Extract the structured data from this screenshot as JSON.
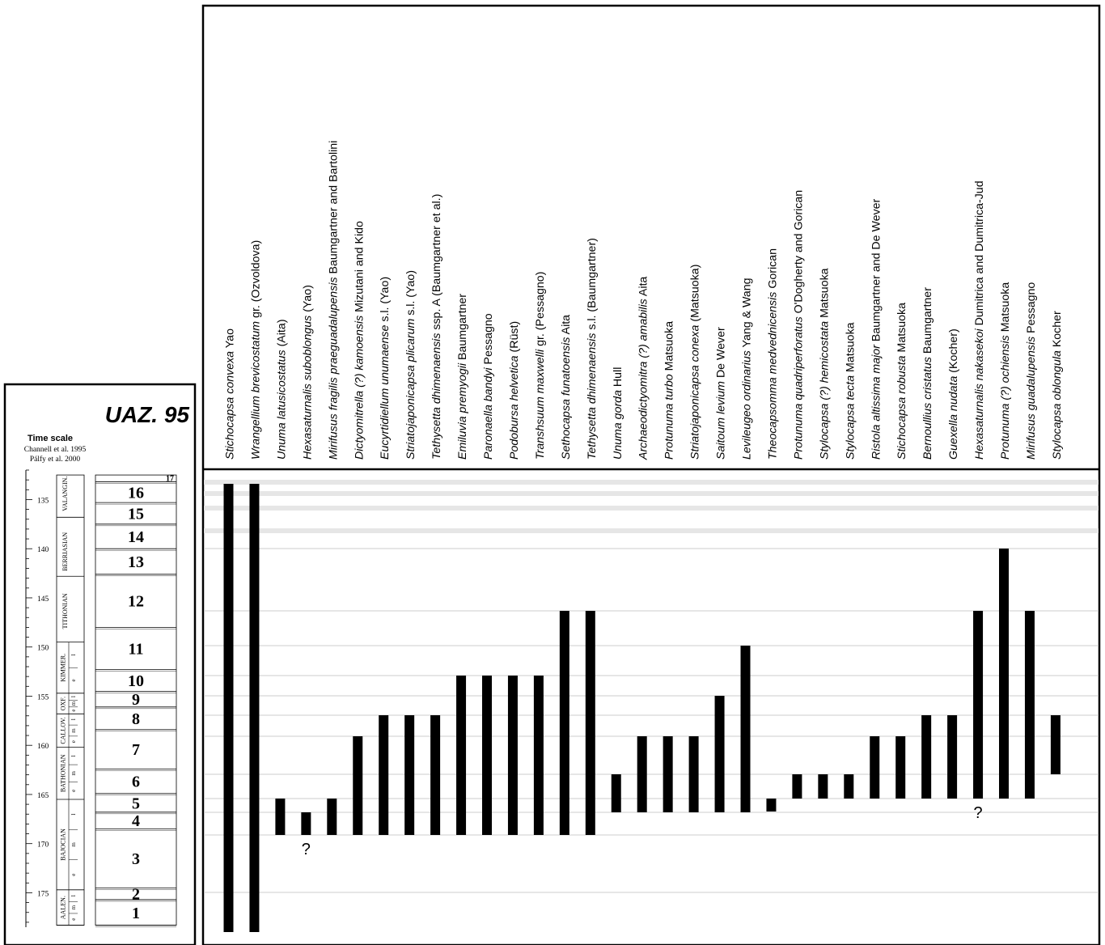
{
  "title": "UAZ. 95",
  "time_scale": {
    "heading": "Time scale",
    "sources": [
      "Channell et al. 1995",
      "Pálfy et al. 2000"
    ]
  },
  "colors": {
    "bar": "#000000",
    "gridline": "#cccccc",
    "gridline_band": "#e6e6e6",
    "frame": "#000000"
  },
  "chart_data": {
    "type": "bar",
    "orientation": "vertical-range",
    "title": "UAZ. 95",
    "y_axis": {
      "label": "",
      "ticks": [
        135,
        140,
        145,
        150,
        155,
        160,
        165,
        170,
        175
      ],
      "range": [
        132,
        178.5
      ],
      "reversed": true
    },
    "stages": [
      {
        "name": "VALANGIN.",
        "top": 132,
        "bottom": 136.8
      },
      {
        "name": "BERRIASIAN",
        "top": 137.8,
        "bottom": 142.8
      },
      {
        "name": "TITHONIAN",
        "top": 143.2,
        "bottom": 149.5
      },
      {
        "name": "KIMMER.",
        "top": 149.5,
        "bottom": 154.7,
        "sub": [
          "l",
          "e"
        ]
      },
      {
        "name": "OXF.",
        "top": 154.7,
        "bottom": 156.8,
        "sub": [
          "l",
          "m",
          "e"
        ]
      },
      {
        "name": "CALLOV.",
        "top": 156.8,
        "bottom": 160.2,
        "sub": [
          "l",
          "m",
          "e"
        ]
      },
      {
        "name": "BATHONIAN",
        "top": 160.2,
        "bottom": 165.5,
        "sub": [
          "l",
          "m",
          "e"
        ]
      },
      {
        "name": "BAJOCIAN",
        "top": 165.5,
        "bottom": 174.7,
        "sub": [
          "l",
          "m",
          "e"
        ]
      },
      {
        "name": "AALEN.",
        "top": 174.7,
        "bottom": 178.3,
        "sub": [
          "l",
          "m",
          "e"
        ]
      }
    ],
    "zones": [
      {
        "label": "17",
        "top": 132.5,
        "bottom": 133.2
      },
      {
        "label": "16",
        "top": 133.2,
        "bottom": 135.3
      },
      {
        "label": "15",
        "top": 135.3,
        "bottom": 137.5
      },
      {
        "label": "14",
        "top": 137.5,
        "bottom": 140.0
      },
      {
        "label": "13",
        "top": 140.0,
        "bottom": 142.6
      },
      {
        "label": "12",
        "top": 142.6,
        "bottom": 148.0
      },
      {
        "label": "11",
        "top": 148.0,
        "bottom": 152.3
      },
      {
        "label": "10",
        "top": 152.3,
        "bottom": 154.5
      },
      {
        "label": "9",
        "top": 154.5,
        "bottom": 156.1
      },
      {
        "label": "8",
        "top": 156.1,
        "bottom": 158.4
      },
      {
        "label": "7",
        "top": 158.4,
        "bottom": 162.4
      },
      {
        "label": "6",
        "top": 162.4,
        "bottom": 164.9
      },
      {
        "label": "5",
        "top": 164.9,
        "bottom": 166.8
      },
      {
        "label": "4",
        "top": 166.8,
        "bottom": 168.5
      },
      {
        "label": "3",
        "top": 168.5,
        "bottom": 174.5
      },
      {
        "label": "2",
        "top": 174.5,
        "bottom": 175.7
      },
      {
        "label": "1",
        "top": 175.7,
        "bottom": 178.3
      }
    ],
    "series": [
      {
        "italic": "Stichocapsa convexa",
        "author": " Yao",
        "top": 1,
        "bottom": 17,
        "q": false
      },
      {
        "italic": "Wrangellium brevicostatum",
        "author": " gr. (Ozvoldova)",
        "top": 1,
        "bottom": 17,
        "q": false
      },
      {
        "italic": "Unuma latusicostatus",
        "author": " (Aita)",
        "top": 3,
        "bottom": 5,
        "q": false
      },
      {
        "italic": "Hexasaturnalis suboblongus",
        "author": " (Yao)",
        "top": 3,
        "bottom": 4,
        "q": true
      },
      {
        "italic": "Mirifusus fragilis praeguadalupensis",
        "author": " Baumgartner and Bartolini",
        "top": 3,
        "bottom": 5,
        "q": false
      },
      {
        "italic": "Dictyomitrella (?) kamoensis",
        "author": " Mizutani and Kido",
        "top": 3,
        "bottom": 7,
        "q": false
      },
      {
        "italic": "Eucyrtidiellum unumaense",
        "author": " s.l. (Yao)",
        "top": 3,
        "bottom": 8,
        "q": false
      },
      {
        "italic": "Striatojaponicapsa plicarum",
        "author": " s.l. (Yao)",
        "top": 3,
        "bottom": 8,
        "q": false
      },
      {
        "italic": "Tethysetta dhimenaensis",
        "author": " ssp. A  (Baumgartner et al.)",
        "top": 3,
        "bottom": 8,
        "q": false
      },
      {
        "italic": "Emiluvia premyogii",
        "author": " Baumgartner",
        "top": 3,
        "bottom": 10,
        "q": false
      },
      {
        "italic": "Paronaella bandyi",
        "author": " Pessagno",
        "top": 3,
        "bottom": 10,
        "q": false
      },
      {
        "italic": "Podobursa helvetica",
        "author": " (Rüst)",
        "top": 3,
        "bottom": 10,
        "q": false
      },
      {
        "italic": "Transhsuum maxwelli",
        "author": " gr. (Pessagno)",
        "top": 3,
        "bottom": 10,
        "q": false
      },
      {
        "italic": "Sethocapsa funatoensis",
        "author": " Aita",
        "top": 3,
        "bottom": 12,
        "q": false
      },
      {
        "italic": "Tethysetta dhimenaensis",
        "author": " s.l. (Baumgartner)",
        "top": 3,
        "bottom": 12,
        "q": false
      },
      {
        "italic": "Unuma gorda",
        "author": " Hull",
        "top": 4,
        "bottom": 6,
        "q": false
      },
      {
        "italic": "Archaeodictyomitra (?) amabilis",
        "author": " Aita",
        "top": 4,
        "bottom": 7,
        "q": false
      },
      {
        "italic": "Protunuma turbo",
        "author": " Matsuoka",
        "top": 4,
        "bottom": 7,
        "q": false
      },
      {
        "italic": "Striatojaponicapsa conexa",
        "author": " (Matsuoka)",
        "top": 4,
        "bottom": 7,
        "q": false
      },
      {
        "italic": "Saitoum levium",
        "author": " De Wever",
        "top": 4,
        "bottom": 9,
        "q": false
      },
      {
        "italic": "Levileugeo ordinarius",
        "author": " Yang & Wang",
        "top": 4,
        "bottom": 11,
        "q": false
      },
      {
        "italic": "Theocapsomma medvednicensis",
        "author": " Gorican",
        "top": 5,
        "bottom": 5,
        "q": false
      },
      {
        "italic": "Protunuma quadriperforatus",
        "author": " O'Dogherty and Gorican",
        "top": 5,
        "bottom": 6,
        "q": false
      },
      {
        "italic": "Stylocapsa (?) hemicostata",
        "author": " Matsuoka",
        "top": 5,
        "bottom": 6,
        "q": false
      },
      {
        "italic": "Stylocapsa tecta",
        "author": " Matsuoka",
        "top": 5,
        "bottom": 6,
        "q": false
      },
      {
        "italic": "Ristola altissima major",
        "author": " Baumgartner and De Wever",
        "top": 5,
        "bottom": 7,
        "q": false
      },
      {
        "italic": "Stichocapsa robusta",
        "author": " Matsuoka",
        "top": 5,
        "bottom": 7,
        "q": false
      },
      {
        "italic": "Bernoullius cristatus",
        "author": " Baumgartner",
        "top": 5,
        "bottom": 8,
        "q": false
      },
      {
        "italic": "Guexella nudata",
        "author": " (Kocher)",
        "top": 5,
        "bottom": 8,
        "q": false
      },
      {
        "italic": "Hexasaturnalis nakasekoi",
        "author": " Dumitrica and Dumitrica-Jud",
        "top": 5,
        "bottom": 12,
        "q": true
      },
      {
        "italic": "Protunuma (?) ochiensis",
        "author": " Matsuoka",
        "top": 5,
        "bottom": 13,
        "q": false
      },
      {
        "italic": "Mirifusus guadalupensis",
        "author": " Pessagno",
        "top": 5,
        "bottom": 12,
        "q": false
      },
      {
        "italic": "Stylocapsa oblongula",
        "author": " Kocher",
        "top": 6,
        "bottom": 8,
        "q": false
      }
    ]
  }
}
